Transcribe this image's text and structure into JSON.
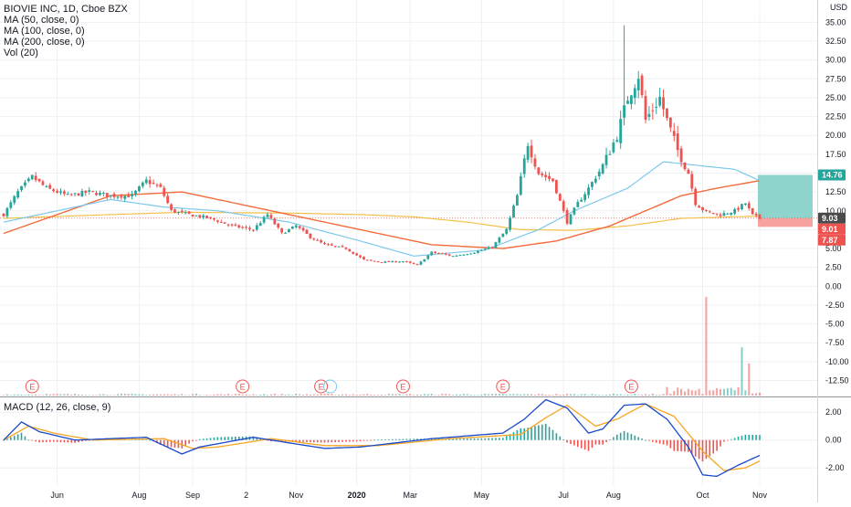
{
  "legend": {
    "symbol": "BIOVIE INC, 1D, Cboe BZX",
    "ma50": "MA (50, close, 0)",
    "ma100": "MA (100, close, 0)",
    "ma200": "MA (200, close, 0)",
    "vol": "Vol (20)",
    "macd": "MACD (12, 26, close, 9)"
  },
  "currency_label": "USD",
  "colors": {
    "up": "#26a69a",
    "down": "#ef5350",
    "ma50": "#7fc8ec",
    "ma100": "#f26b3a",
    "ma200": "#f5c04a",
    "macd": "#1848cc",
    "signal": "#f5a623",
    "grid": "#eef0f3",
    "profit_zone": "#8fd4cc",
    "loss_zone": "#f6a3a0",
    "price_tag": "#4a4a4a"
  },
  "price_tags": {
    "target": "14.76",
    "current": "9.03",
    "entry": "9.01",
    "stop": "7.87"
  },
  "earnings_marker": "E",
  "chart_data": [
    {
      "type": "candlestick",
      "title": "BIOVIE INC, 1D, Cboe BZX",
      "x_ticks": [
        "Jun",
        "Aug",
        "Sep",
        "2",
        "Nov",
        "2020",
        "Mar",
        "May",
        "Jul",
        "Aug",
        "Oct",
        "Nov"
      ],
      "y_ticks": [
        "35.00",
        "32.50",
        "30.00",
        "27.50",
        "25.00",
        "22.50",
        "20.00",
        "17.50",
        "15.00",
        "12.50",
        "10.00",
        "7.50",
        "5.00",
        "2.50",
        "0.00",
        "-2.50",
        "-5.00",
        "-7.50",
        "-10.00",
        "-12.50"
      ],
      "ylim": [
        -14.5,
        36.5
      ],
      "grid": true,
      "close_path": [
        [
          0,
          9.5
        ],
        [
          4,
          12.5
        ],
        [
          8,
          14.5
        ],
        [
          12,
          13.0
        ],
        [
          18,
          12.0
        ],
        [
          24,
          12.5
        ],
        [
          30,
          12.0
        ],
        [
          36,
          12.0
        ],
        [
          40,
          14.0
        ],
        [
          44,
          13.0
        ],
        [
          47,
          10.0
        ],
        [
          52,
          9.5
        ],
        [
          58,
          9.0
        ],
        [
          64,
          8.0
        ],
        [
          70,
          7.5
        ],
        [
          74,
          9.5
        ],
        [
          78,
          7.0
        ],
        [
          82,
          8.0
        ],
        [
          86,
          6.5
        ],
        [
          90,
          5.5
        ],
        [
          96,
          5.0
        ],
        [
          101,
          3.5
        ],
        [
          106,
          3.2
        ],
        [
          112,
          3.3
        ],
        [
          116,
          2.8
        ],
        [
          120,
          4.5
        ],
        [
          126,
          4.0
        ],
        [
          132,
          4.5
        ],
        [
          137,
          5.2
        ],
        [
          141,
          7.5
        ],
        [
          144,
          12.0
        ],
        [
          147,
          19.0
        ],
        [
          150,
          15.0
        ],
        [
          154,
          14.0
        ],
        [
          158,
          8.5
        ],
        [
          161,
          11.0
        ],
        [
          164,
          13.0
        ],
        [
          168,
          16.0
        ],
        [
          172,
          20.0
        ],
        [
          175,
          25.0
        ],
        [
          178,
          28.0
        ],
        [
          180,
          22.0
        ],
        [
          184,
          25.0
        ],
        [
          186,
          22.0
        ],
        [
          189,
          18.0
        ],
        [
          192,
          15.0
        ],
        [
          194,
          11.0
        ],
        [
          197,
          9.8
        ],
        [
          201,
          9.5
        ],
        [
          205,
          10.0
        ],
        [
          208,
          11.0
        ],
        [
          210,
          9.4
        ],
        [
          212,
          9.0
        ]
      ],
      "ma50": [
        [
          0,
          8.5
        ],
        [
          30,
          11.5
        ],
        [
          45,
          10.5
        ],
        [
          60,
          10.0
        ],
        [
          80,
          8.5
        ],
        [
          100,
          6.0
        ],
        [
          115,
          4.0
        ],
        [
          135,
          4.8
        ],
        [
          150,
          7.5
        ],
        [
          160,
          10.0
        ],
        [
          175,
          13.0
        ],
        [
          185,
          16.5
        ],
        [
          195,
          16.0
        ],
        [
          205,
          15.5
        ],
        [
          212,
          14.0
        ]
      ],
      "ma100": [
        [
          0,
          7.0
        ],
        [
          30,
          12.0
        ],
        [
          50,
          12.5
        ],
        [
          65,
          11.0
        ],
        [
          80,
          9.5
        ],
        [
          100,
          7.5
        ],
        [
          120,
          5.5
        ],
        [
          140,
          5.0
        ],
        [
          155,
          6.0
        ],
        [
          170,
          8.0
        ],
        [
          180,
          10.0
        ],
        [
          190,
          12.0
        ],
        [
          200,
          13.0
        ],
        [
          212,
          14.0
        ]
      ],
      "ma200": [
        [
          0,
          9.0
        ],
        [
          30,
          9.5
        ],
        [
          50,
          9.8
        ],
        [
          80,
          9.7
        ],
        [
          100,
          9.5
        ],
        [
          115,
          9.2
        ],
        [
          130,
          8.5
        ],
        [
          145,
          7.5
        ],
        [
          160,
          7.4
        ],
        [
          175,
          8.0
        ],
        [
          190,
          9.0
        ],
        [
          212,
          9.3
        ]
      ],
      "volume_spikes": [
        [
          197,
          12.0
        ],
        [
          207,
          3.0
        ],
        [
          209,
          2.0
        ]
      ],
      "earnings_days": [
        8,
        67,
        89,
        112,
        140,
        176
      ],
      "position": {
        "target": 14.76,
        "entry": 9.01,
        "stop": 7.87,
        "current": 9.03
      }
    },
    {
      "type": "line",
      "title": "MACD (12, 26, close, 9)",
      "y_ticks": [
        "2.00",
        "0.00",
        "-2.00"
      ],
      "ylim": [
        -3.3,
        3.0
      ],
      "series": [
        {
          "name": "MACD",
          "values": [
            [
              0,
              0.0
            ],
            [
              5,
              1.3
            ],
            [
              10,
              0.6
            ],
            [
              20,
              0.0
            ],
            [
              40,
              0.2
            ],
            [
              50,
              -1.0
            ],
            [
              55,
              -0.5
            ],
            [
              70,
              0.2
            ],
            [
              80,
              -0.2
            ],
            [
              90,
              -0.6
            ],
            [
              100,
              -0.5
            ],
            [
              120,
              0.1
            ],
            [
              140,
              0.5
            ],
            [
              146,
              1.5
            ],
            [
              152,
              2.9
            ],
            [
              158,
              2.3
            ],
            [
              164,
              0.5
            ],
            [
              168,
              0.8
            ],
            [
              174,
              2.5
            ],
            [
              180,
              2.6
            ],
            [
              186,
              1.5
            ],
            [
              192,
              -0.5
            ],
            [
              196,
              -2.5
            ],
            [
              200,
              -2.6
            ],
            [
              206,
              -1.8
            ],
            [
              212,
              -1.1
            ]
          ]
        },
        {
          "name": "Signal",
          "values": [
            [
              0,
              0.0
            ],
            [
              7,
              1.0
            ],
            [
              14,
              0.5
            ],
            [
              25,
              0.0
            ],
            [
              45,
              0.1
            ],
            [
              53,
              -0.6
            ],
            [
              60,
              -0.5
            ],
            [
              75,
              0.1
            ],
            [
              90,
              -0.4
            ],
            [
              105,
              -0.4
            ],
            [
              125,
              0.1
            ],
            [
              145,
              0.4
            ],
            [
              152,
              1.6
            ],
            [
              158,
              2.5
            ],
            [
              166,
              1.0
            ],
            [
              172,
              1.5
            ],
            [
              180,
              2.6
            ],
            [
              188,
              1.7
            ],
            [
              196,
              -0.8
            ],
            [
              202,
              -2.2
            ],
            [
              208,
              -2.0
            ],
            [
              212,
              -1.5
            ]
          ]
        }
      ]
    }
  ]
}
